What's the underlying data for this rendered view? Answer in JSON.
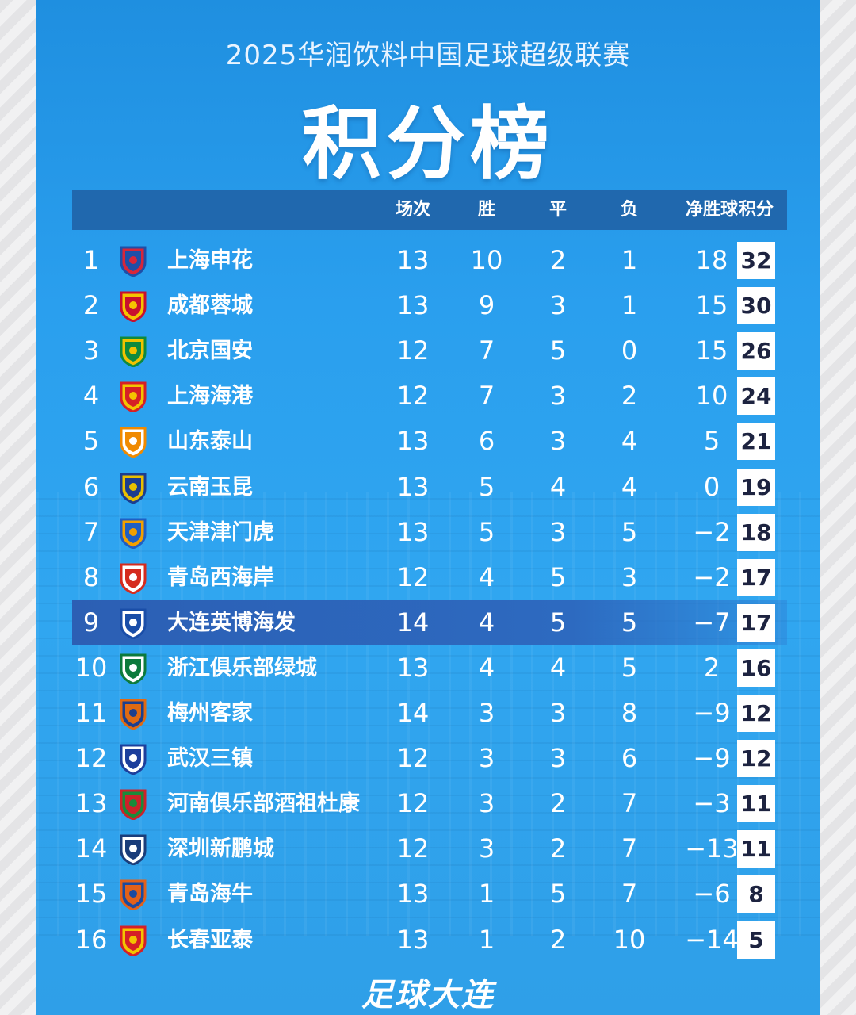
{
  "header": {
    "subtitle": "2025华润饮料中国足球超级联赛",
    "title": "积分榜"
  },
  "columns": [
    "场次",
    "胜",
    "平",
    "负",
    "净胜球",
    "积分"
  ],
  "rows": [
    {
      "rank": "1",
      "team": "上海申花",
      "played": "13",
      "won": "10",
      "drawn": "2",
      "lost": "1",
      "gd": "18",
      "pts": "32",
      "logo": "shanghai-shenhua-logo-icon",
      "color": "#1e4fa8",
      "color2": "#d8263a"
    },
    {
      "rank": "2",
      "team": "成都蓉城",
      "played": "13",
      "won": "9",
      "drawn": "3",
      "lost": "1",
      "gd": "15",
      "pts": "30",
      "logo": "chengdu-rongcheng-logo-icon",
      "color": "#c8102e",
      "color2": "#f5c400"
    },
    {
      "rank": "3",
      "team": "北京国安",
      "played": "12",
      "won": "7",
      "drawn": "5",
      "lost": "0",
      "gd": "15",
      "pts": "26",
      "logo": "beijing-guoan-logo-icon",
      "color": "#0e8a3e",
      "color2": "#f2c200"
    },
    {
      "rank": "4",
      "team": "上海海港",
      "played": "12",
      "won": "7",
      "drawn": "3",
      "lost": "2",
      "gd": "10",
      "pts": "24",
      "logo": "shanghai-port-logo-icon",
      "color": "#d61f26",
      "color2": "#f4c300"
    },
    {
      "rank": "5",
      "team": "山东泰山",
      "played": "13",
      "won": "6",
      "drawn": "3",
      "lost": "4",
      "gd": "5",
      "pts": "21",
      "logo": "shandong-taishan-logo-icon",
      "color": "#f08a00",
      "color2": "#ffffff"
    },
    {
      "rank": "6",
      "team": "云南玉昆",
      "played": "13",
      "won": "5",
      "drawn": "4",
      "lost": "4",
      "gd": "0",
      "pts": "19",
      "logo": "yunnan-yukun-logo-icon",
      "color": "#1c3d8f",
      "color2": "#e9c000"
    },
    {
      "rank": "7",
      "team": "天津津门虎",
      "played": "13",
      "won": "5",
      "drawn": "3",
      "lost": "5",
      "gd": "−2",
      "pts": "18",
      "logo": "tianjin-jinmen-tiger-logo-icon",
      "color": "#1f5fc4",
      "color2": "#f3a000"
    },
    {
      "rank": "8",
      "team": "青岛西海岸",
      "played": "12",
      "won": "4",
      "drawn": "5",
      "lost": "3",
      "gd": "−2",
      "pts": "17",
      "logo": "qingdao-west-coast-logo-icon",
      "color": "#d52b1e",
      "color2": "#ffffff"
    },
    {
      "rank": "9",
      "team": "大连英博海发",
      "played": "14",
      "won": "4",
      "drawn": "5",
      "lost": "5",
      "gd": "−7",
      "pts": "17",
      "logo": "dalian-yingbo-logo-icon",
      "color": "#1a4ea8",
      "color2": "#ffffff",
      "highlight": true
    },
    {
      "rank": "10",
      "team": "浙江俱乐部绿城",
      "played": "13",
      "won": "4",
      "drawn": "4",
      "lost": "5",
      "gd": "2",
      "pts": "16",
      "logo": "zhejiang-logo-icon",
      "color": "#0d7a3c",
      "color2": "#ffffff"
    },
    {
      "rank": "11",
      "team": "梅州客家",
      "played": "14",
      "won": "3",
      "drawn": "3",
      "lost": "8",
      "gd": "−9",
      "pts": "12",
      "logo": "meizhou-hakka-logo-icon",
      "color": "#e06a12",
      "color2": "#1c3f8e"
    },
    {
      "rank": "12",
      "team": "武汉三镇",
      "played": "12",
      "won": "3",
      "drawn": "3",
      "lost": "6",
      "gd": "−9",
      "pts": "12",
      "logo": "wuhan-three-towns-logo-icon",
      "color": "#1d3f9c",
      "color2": "#ffffff"
    },
    {
      "rank": "13",
      "team": "河南俱乐部酒祖杜康",
      "played": "12",
      "won": "3",
      "drawn": "2",
      "lost": "7",
      "gd": "−3",
      "pts": "11",
      "logo": "henan-logo-icon",
      "color": "#cc2229",
      "color2": "#1a8a3a"
    },
    {
      "rank": "14",
      "team": "深圳新鹏城",
      "played": "12",
      "won": "3",
      "drawn": "2",
      "lost": "7",
      "gd": "−13",
      "pts": "11",
      "logo": "shenzhen-peng-city-logo-icon",
      "color": "#1a3d7a",
      "color2": "#ffffff"
    },
    {
      "rank": "15",
      "team": "青岛海牛",
      "played": "13",
      "won": "1",
      "drawn": "5",
      "lost": "7",
      "gd": "−6",
      "pts": "8",
      "logo": "qingdao-hainiu-logo-icon",
      "color": "#e2611a",
      "color2": "#1b4aa0"
    },
    {
      "rank": "16",
      "team": "长春亚泰",
      "played": "13",
      "won": "1",
      "drawn": "2",
      "lost": "10",
      "gd": "−14",
      "pts": "5",
      "logo": "changchun-yatai-logo-icon",
      "color": "#d52027",
      "color2": "#f3c500"
    }
  ],
  "footer": {
    "brand": "足球大连"
  }
}
